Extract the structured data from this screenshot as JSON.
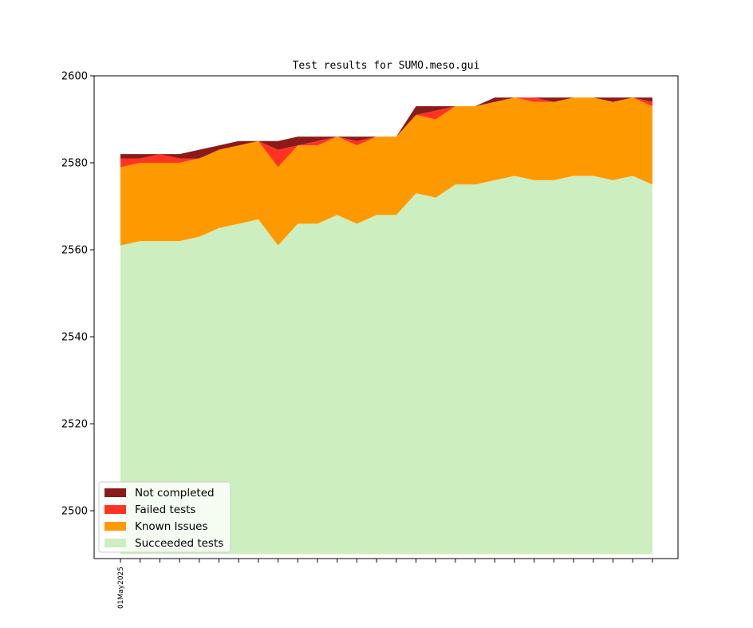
{
  "chart_data": {
    "type": "area",
    "stacked": true,
    "title": "Test results for SUMO.meso.gui",
    "xlabel": "",
    "ylabel": "",
    "ylim": [
      2489,
      2600
    ],
    "y_ticks": [
      2500,
      2520,
      2540,
      2560,
      2580,
      2600
    ],
    "x_count": 28,
    "x_tick_labels": [
      {
        "index": 0,
        "label": "01May2025"
      }
    ],
    "baseline": 2490,
    "legend_position": "lower-left",
    "grid": false,
    "series": [
      {
        "name": "Succeeded tests",
        "color": "#cdeebe",
        "top": [
          2561,
          2562,
          2562,
          2562,
          2563,
          2565,
          2566,
          2567,
          2561,
          2566,
          2566,
          2568,
          2566,
          2568,
          2568,
          2573,
          2572,
          2575,
          2575,
          2576,
          2577,
          2576,
          2576,
          2577,
          2577,
          2576,
          2577,
          2575
        ]
      },
      {
        "name": "Known Issues",
        "color": "#ff9900",
        "top": [
          2579,
          2580,
          2580,
          2580,
          2581,
          2583,
          2584,
          2585,
          2579,
          2584,
          2584,
          2586,
          2584,
          2586,
          2586,
          2591,
          2590,
          2593,
          2593,
          2594,
          2595,
          2594,
          2594,
          2595,
          2595,
          2594,
          2595,
          2593
        ]
      },
      {
        "name": "Failed tests",
        "color": "#ff3322",
        "top": [
          2581,
          2581,
          2582,
          2581,
          2581,
          2583,
          2584,
          2585,
          2583,
          2584,
          2585,
          2586,
          2585,
          2586,
          2586,
          2591,
          2592,
          2593,
          2593,
          2594,
          2595,
          2595,
          2594,
          2595,
          2595,
          2594,
          2595,
          2594
        ]
      },
      {
        "name": "Not completed",
        "color": "#8b1a1a",
        "top": [
          2582,
          2582,
          2582,
          2582,
          2583,
          2584,
          2585,
          2585,
          2585,
          2586,
          2586,
          2586,
          2586,
          2586,
          2586,
          2593,
          2593,
          2593,
          2593,
          2595,
          2595,
          2595,
          2595,
          2595,
          2595,
          2595,
          2595,
          2595
        ]
      }
    ],
    "legend_order": [
      "Not completed",
      "Failed tests",
      "Known Issues",
      "Succeeded tests"
    ]
  }
}
